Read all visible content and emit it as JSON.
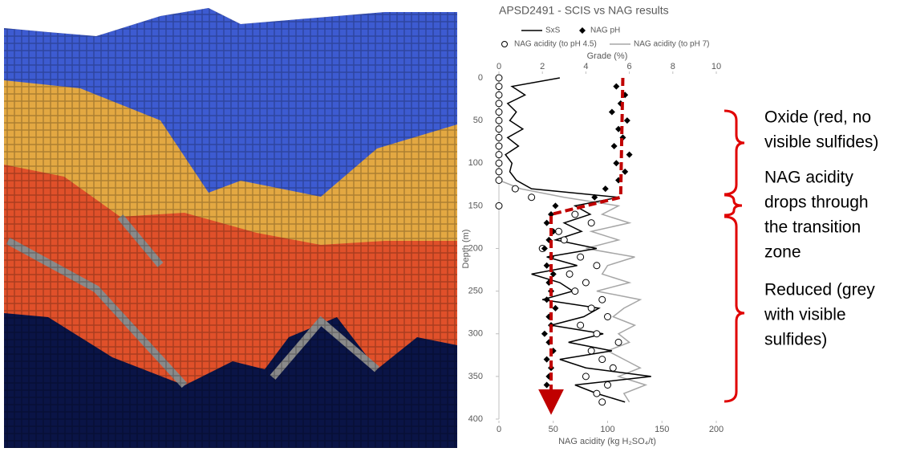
{
  "chart_data": {
    "type": "depth-profile",
    "title": "APSD2491 - SCIS vs NAG results",
    "x2_title": "Grade (%)",
    "x_title": "NAG acidity (kg H₂SO₄/t)",
    "y_title": "Depth (m)",
    "xlim": [
      0,
      200
    ],
    "xticks": [
      0,
      50,
      100,
      150,
      200
    ],
    "x2lim": [
      0,
      10
    ],
    "x2ticks": [
      0,
      2,
      4,
      6,
      8,
      10
    ],
    "ylim": [
      0,
      400
    ],
    "yticks": [
      0,
      50,
      100,
      150,
      200,
      250,
      300,
      350,
      400
    ],
    "y_inverted": true,
    "grid": false,
    "y": [
      0,
      10,
      20,
      30,
      40,
      50,
      60,
      70,
      80,
      90,
      100,
      110,
      120,
      130,
      140,
      150,
      160,
      170,
      180,
      190,
      200,
      210,
      220,
      230,
      240,
      250,
      260,
      270,
      280,
      290,
      300,
      310,
      320,
      330,
      340,
      350,
      360,
      370,
      380
    ],
    "series": [
      {
        "name": "SxS",
        "color": "#000000",
        "axis": "x2",
        "style": "line",
        "values": [
          2.8,
          0.6,
          1.2,
          0.4,
          0.8,
          0.5,
          1.1,
          0.4,
          0.9,
          0.3,
          0.6,
          0.5,
          0.8,
          1.5,
          5.5,
          3.5,
          4.2,
          3.0,
          3.8,
          2.6,
          4.5,
          2.2,
          3.6,
          1.5,
          2.8,
          3.4,
          2.0,
          4.6,
          3.9,
          2.4,
          4.8,
          3.2,
          5.2,
          2.8,
          4.0,
          7.0,
          3.5,
          4.5,
          5.8
        ]
      },
      {
        "name": "NAG pH",
        "color": "#000000",
        "axis": "x2",
        "style": "diamond",
        "values": [
          null,
          5.4,
          5.8,
          5.6,
          5.2,
          5.9,
          5.5,
          5.7,
          5.3,
          6.0,
          5.4,
          5.8,
          5.5,
          4.9,
          4.4,
          2.6,
          2.4,
          2.2,
          2.5,
          2.3,
          2.1,
          2.4,
          2.2,
          2.5,
          2.3,
          2.4,
          2.2,
          2.6,
          2.3,
          2.4,
          2.1,
          2.3,
          2.5,
          2.2,
          2.4,
          2.3,
          2.2,
          2.4,
          2.5
        ]
      },
      {
        "name": "NAG acidity (to pH 4.5)",
        "color": "#000000",
        "axis": "x",
        "style": "circle",
        "values": [
          0,
          0,
          0,
          0,
          0,
          0,
          0,
          0,
          0,
          0,
          0,
          0,
          0,
          15,
          30,
          0,
          70,
          85,
          55,
          60,
          40,
          75,
          90,
          65,
          80,
          70,
          95,
          85,
          100,
          75,
          90,
          110,
          85,
          95,
          105,
          80,
          100,
          90,
          95
        ]
      },
      {
        "name": "NAG acidity (to pH 7)",
        "color": "#a6a6a6",
        "axis": "x",
        "style": "line",
        "values": [
          0,
          0,
          0,
          0,
          0,
          0,
          0,
          0,
          0,
          0,
          0,
          0,
          0,
          20,
          60,
          110,
          95,
          120,
          85,
          110,
          80,
          125,
          100,
          95,
          120,
          90,
          130,
          115,
          105,
          125,
          110,
          120,
          100,
          115,
          130,
          110,
          135,
          115,
          120
        ]
      }
    ],
    "trend": {
      "color": "#c00000",
      "axis": "x2",
      "values": [
        5.7,
        5.6,
        2.4,
        2.4
      ],
      "y": [
        0,
        140,
        160,
        380
      ]
    },
    "annotations": [
      {
        "lines": [
          "Oxide (red, no",
          "visible sulfides)"
        ]
      },
      {
        "lines": [
          "NAG acidity",
          "drops through",
          "the transition",
          "zone"
        ]
      },
      {
        "lines": [
          "Reduced (grey",
          "with visible",
          "sulfides)"
        ]
      }
    ]
  }
}
